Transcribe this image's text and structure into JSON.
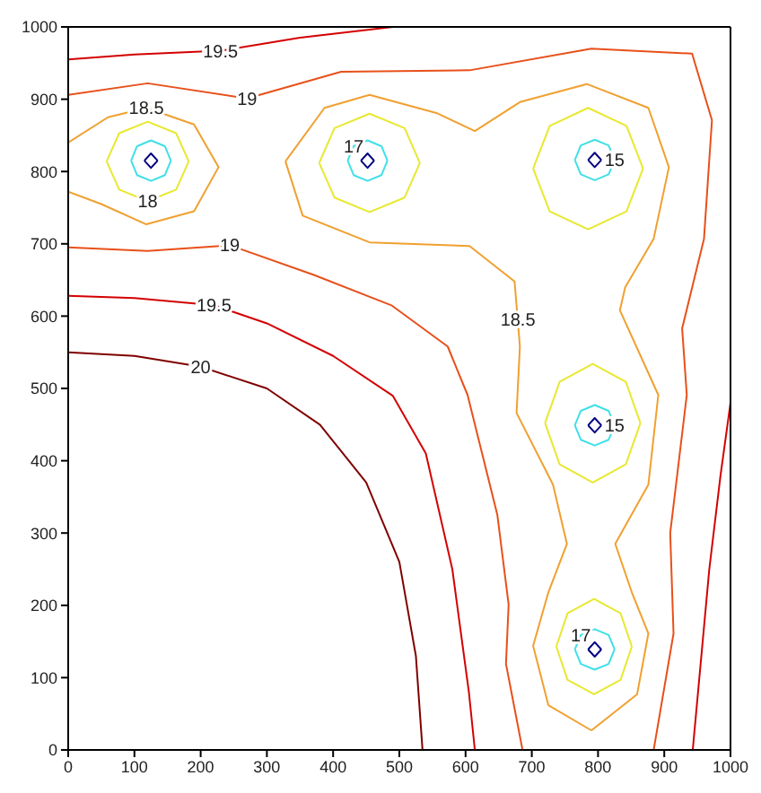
{
  "chart_data": {
    "type": "line",
    "xlim": [
      0,
      1000
    ],
    "ylim": [
      0,
      1000
    ],
    "xticks": [
      0,
      100,
      200,
      300,
      400,
      500,
      600,
      700,
      800,
      900,
      1000
    ],
    "yticks": [
      0,
      100,
      200,
      300,
      400,
      500,
      600,
      700,
      800,
      900,
      1000
    ],
    "grid": false,
    "marker": "none",
    "series": [
      {
        "color": "#800000",
        "x": [
          0,
          100,
          200,
          300,
          380,
          450,
          500,
          525,
          535
        ],
        "values": [
          550,
          545,
          530,
          500,
          450,
          370,
          260,
          130,
          0
        ]
      },
      {
        "color": "#d40000",
        "x": [
          0,
          100,
          220,
          300,
          400,
          490,
          540,
          580,
          605,
          614
        ],
        "values": [
          628,
          625,
          615,
          590,
          545,
          490,
          410,
          250,
          80,
          0
        ]
      },
      {
        "color": "#d40000",
        "x": [
          0,
          100,
          230,
          350,
          490
        ],
        "values": [
          955,
          962,
          967,
          985,
          1000
        ]
      },
      {
        "color": "#d40000",
        "x": [
          943,
          955,
          968,
          985,
          1000
        ],
        "values": [
          0,
          120,
          250,
          380,
          480
        ]
      },
      {
        "color": "#e8501a",
        "x": [
          0,
          120,
          270,
          412,
          606,
          790,
          942,
          972,
          960,
          927,
          934,
          909,
          914,
          884
        ],
        "values": [
          906,
          922,
          901,
          938,
          940,
          970,
          963,
          871,
          707,
          583,
          491,
          300,
          161,
          0
        ]
      },
      {
        "color": "#e8501a",
        "x": [
          0,
          120,
          244,
          371,
          488,
          573,
          603,
          648,
          665,
          661,
          686
        ],
        "values": [
          695,
          690,
          698,
          657,
          615,
          558,
          491,
          325,
          201,
          119,
          0
        ]
      },
      {
        "color": "#f0a030",
        "x": [
          0,
          60,
          118,
          190,
          227,
          190,
          118,
          50,
          0
        ],
        "values": [
          840,
          875,
          888,
          865,
          806,
          745,
          727,
          755,
          772
        ]
      },
      {
        "color": "#f0a030",
        "x": [
          328,
          387,
          455,
          556,
          614,
          682,
          783,
          876,
          907,
          884,
          841,
          833,
          891,
          876,
          826,
          851,
          876,
          859,
          790
        ],
        "values": [
          814,
          888,
          906,
          881,
          856,
          896,
          921,
          888,
          806,
          707,
          640,
          608,
          491,
          367,
          285,
          218,
          161,
          77,
          27
        ]
      },
      {
        "color": "#f0a030",
        "x": [
          790,
          725,
          702,
          725,
          753,
          732,
          677,
          682,
          674,
          606,
          455,
          354,
          328
        ],
        "values": [
          27,
          62,
          144,
          218,
          285,
          367,
          466,
          558,
          648,
          697,
          702,
          739,
          814
        ]
      },
      {
        "color": "#e8e830",
        "x": [
          58,
          77,
          120,
          163,
          182
        ],
        "values": [
          814,
          853,
          869,
          853,
          814
        ]
      },
      {
        "color": "#e8e830",
        "x": [
          58,
          77,
          120,
          163,
          182
        ],
        "values": [
          814,
          775,
          759,
          775,
          814
        ]
      },
      {
        "color": "#e8e830",
        "x": [
          379,
          402,
          455,
          508,
          531
        ],
        "values": [
          812,
          860,
          880,
          860,
          812
        ]
      },
      {
        "color": "#e8e830",
        "x": [
          379,
          402,
          455,
          508,
          531
        ],
        "values": [
          812,
          764,
          744,
          764,
          812
        ]
      },
      {
        "color": "#e8e830",
        "x": [
          702,
          727,
          785,
          843,
          868
        ],
        "values": [
          804,
          863,
          888,
          863,
          804
        ]
      },
      {
        "color": "#e8e830",
        "x": [
          702,
          727,
          785,
          843,
          868
        ],
        "values": [
          804,
          745,
          720,
          745,
          804
        ]
      },
      {
        "color": "#e8e830",
        "x": [
          720,
          742,
          792,
          842,
          864
        ],
        "values": [
          452,
          509,
          534,
          509,
          452
        ]
      },
      {
        "color": "#e8e830",
        "x": [
          720,
          742,
          792,
          842,
          864
        ],
        "values": [
          452,
          395,
          370,
          395,
          452
        ]
      },
      {
        "color": "#e8e830",
        "x": [
          737,
          754,
          794,
          834,
          851
        ],
        "values": [
          143,
          189,
          209,
          189,
          143
        ]
      },
      {
        "color": "#e8e830",
        "x": [
          737,
          754,
          794,
          834,
          851
        ],
        "values": [
          143,
          97,
          77,
          97,
          143
        ]
      },
      {
        "color": "#40e0e8",
        "x": [
          95,
          104,
          125,
          146,
          155
        ],
        "values": [
          815,
          835,
          843,
          835,
          815
        ]
      },
      {
        "color": "#40e0e8",
        "x": [
          95,
          104,
          125,
          146,
          155
        ],
        "values": [
          815,
          795,
          787,
          795,
          815
        ]
      },
      {
        "color": "#40e0e8",
        "x": [
          422,
          431,
          452,
          473,
          482
        ],
        "values": [
          815,
          835,
          843,
          835,
          815
        ]
      },
      {
        "color": "#40e0e8",
        "x": [
          422,
          431,
          452,
          473,
          482
        ],
        "values": [
          815,
          795,
          787,
          795,
          815
        ]
      },
      {
        "color": "#40e0e8",
        "x": [
          765,
          774,
          795,
          816,
          825
        ],
        "values": [
          816,
          836,
          844,
          836,
          816
        ]
      },
      {
        "color": "#40e0e8",
        "x": [
          765,
          774,
          795,
          816,
          825
        ],
        "values": [
          816,
          796,
          788,
          796,
          816
        ]
      },
      {
        "color": "#40e0e8",
        "x": [
          765,
          774,
          795,
          816,
          825
        ],
        "values": [
          449,
          469,
          477,
          469,
          449
        ]
      },
      {
        "color": "#40e0e8",
        "x": [
          765,
          774,
          795,
          816,
          825
        ],
        "values": [
          449,
          429,
          421,
          429,
          449
        ]
      },
      {
        "color": "#40e0e8",
        "x": [
          765,
          774,
          795,
          816,
          825
        ],
        "values": [
          139,
          159,
          167,
          159,
          139
        ]
      },
      {
        "color": "#40e0e8",
        "x": [
          765,
          774,
          795,
          816,
          825
        ],
        "values": [
          139,
          119,
          111,
          119,
          139
        ]
      },
      {
        "color": "#000080",
        "x": [
          115,
          125,
          135
        ],
        "values": [
          815,
          825,
          815
        ]
      },
      {
        "color": "#000080",
        "x": [
          115,
          125,
          135
        ],
        "values": [
          815,
          805,
          815
        ]
      },
      {
        "color": "#000080",
        "x": [
          442,
          452,
          462
        ],
        "values": [
          815,
          825,
          815
        ]
      },
      {
        "color": "#000080",
        "x": [
          442,
          452,
          462
        ],
        "values": [
          815,
          805,
          815
        ]
      },
      {
        "color": "#000080",
        "x": [
          785,
          795,
          805
        ],
        "values": [
          816,
          826,
          816
        ]
      },
      {
        "color": "#000080",
        "x": [
          785,
          795,
          805
        ],
        "values": [
          816,
          806,
          816
        ]
      },
      {
        "color": "#000080",
        "x": [
          785,
          795,
          805
        ],
        "values": [
          449,
          459,
          449
        ]
      },
      {
        "color": "#000080",
        "x": [
          785,
          795,
          805
        ],
        "values": [
          449,
          439,
          449
        ]
      },
      {
        "color": "#000080",
        "x": [
          785,
          795,
          805
        ],
        "values": [
          139,
          149,
          139
        ]
      },
      {
        "color": "#000080",
        "x": [
          785,
          795,
          805
        ],
        "values": [
          139,
          129,
          139
        ]
      }
    ],
    "annotations": [
      {
        "text": "19.5",
        "x": 230,
        "y": 967
      },
      {
        "text": "19",
        "x": 270,
        "y": 901
      },
      {
        "text": "18.5",
        "x": 118,
        "y": 888
      },
      {
        "text": "18",
        "x": 120,
        "y": 759
      },
      {
        "text": "17",
        "x": 431,
        "y": 835
      },
      {
        "text": "15",
        "x": 825,
        "y": 816
      },
      {
        "text": "19",
        "x": 244,
        "y": 698
      },
      {
        "text": "19.5",
        "x": 220,
        "y": 615
      },
      {
        "text": "18.5",
        "x": 679,
        "y": 595
      },
      {
        "text": "20",
        "x": 200,
        "y": 530
      },
      {
        "text": "15",
        "x": 825,
        "y": 449
      },
      {
        "text": "17",
        "x": 774,
        "y": 159
      }
    ]
  }
}
